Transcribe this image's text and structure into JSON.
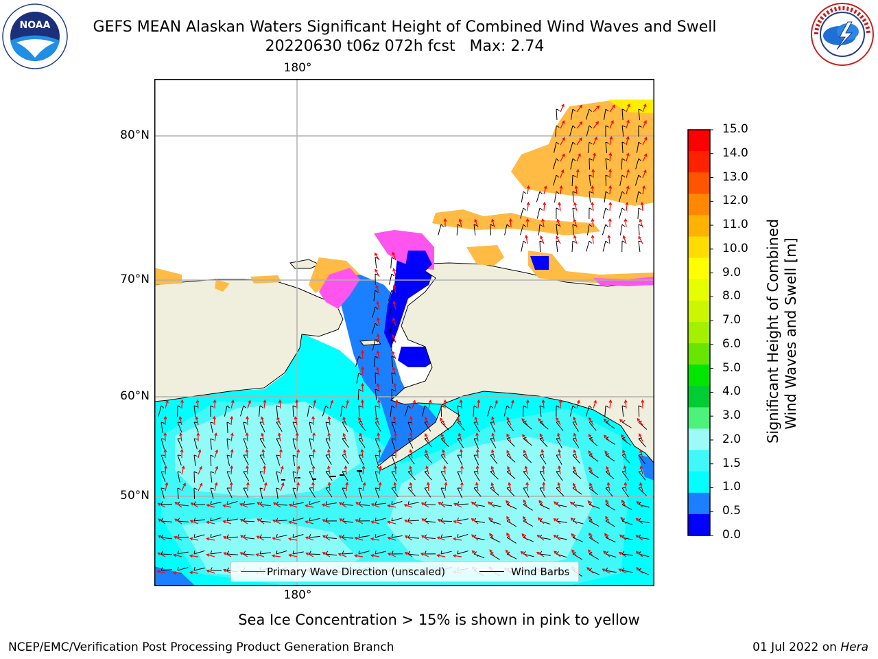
{
  "header": {
    "title_line1": "GEFS MEAN Alaskan Waters Significant Height of Combined Wind Waves and Swell",
    "title_line2": "20220630 t06z 072h fcst   Max: 2.74",
    "left_logo": "NOAA",
    "left_logo_ring_text": "NATIONAL OCEANIC AND ATMOSPHERIC ADMINISTRATION · U.S. DEPARTMENT OF COMMERCE",
    "right_logo_ring_text": "NATIONAL WEATHER SERVICE"
  },
  "map": {
    "lon_label_top": "180°",
    "lon_label_bottom": "180°",
    "lat_labels": [
      "80°N",
      "70°N",
      "60°N",
      "50°N"
    ],
    "colors": {
      "land": "#f0eedc",
      "ocean_high": "#00ffff",
      "ocean_mid": "#40f8f8",
      "ocean_low": "#9cfbf6",
      "shallow": "#1a80ff",
      "very_shallow": "#0000ff",
      "ice_pink": "#ff55ee",
      "ice_orange": "#ffbb44",
      "ice_yellow": "#ffee00",
      "grid": "#b0b0b0",
      "wave_arrow": "#ff0000",
      "wind_barb": "#000000"
    }
  },
  "legend": {
    "wave_label": "Primary Wave Direction (unscaled)",
    "wind_label": "Wind Barbs"
  },
  "colorbar": {
    "title_line1": "Significant Height of Combined",
    "title_line2": "Wind Waves and Swell [m]",
    "ticks": [
      "15.0",
      "14.0",
      "13.0",
      "12.0",
      "11.0",
      "10.0",
      "9.0",
      "8.0",
      "7.0",
      "6.0",
      "5.0",
      "4.0",
      "3.0",
      "2.0",
      "1.5",
      "1.0",
      "0.5",
      "0.0"
    ],
    "colors_top_to_bottom": [
      "#ff0000",
      "#ff2200",
      "#ff5500",
      "#ff8800",
      "#ffb300",
      "#ffdd00",
      "#ffff00",
      "#e6ff00",
      "#ccf500",
      "#a3f000",
      "#66e600",
      "#00e600",
      "#00cc33",
      "#4cf27a",
      "#9cfbf6",
      "#40f8f8",
      "#00ffff",
      "#1a80ff",
      "#0000ff"
    ]
  },
  "footnote": "Sea Ice Concentration > 15% is shown in pink to yellow",
  "footer": {
    "left": "NCEP/EMC/Verification Post Processing Product Generation Branch",
    "right_date": "01 Jul 2022 on ",
    "right_host": "Hera"
  }
}
